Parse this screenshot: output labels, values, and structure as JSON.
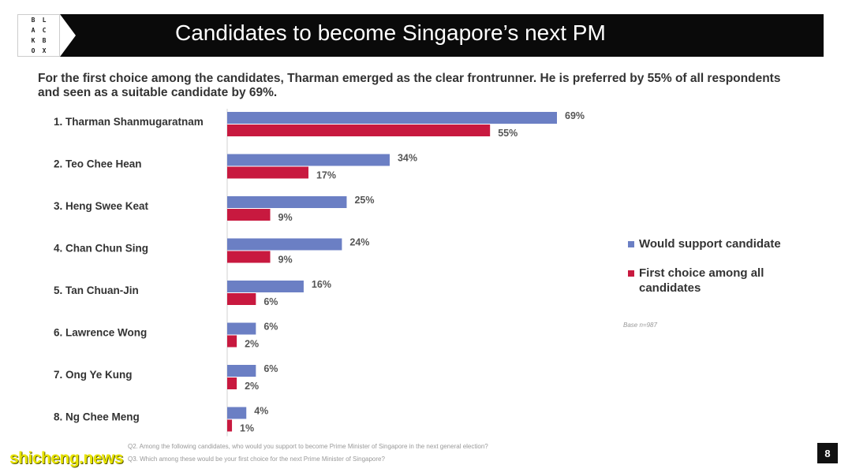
{
  "logo": {
    "letters": [
      "B",
      "L",
      "A",
      "C",
      "K",
      "B",
      "O",
      "X"
    ],
    "alt_text": "BLACKBOX"
  },
  "header": {
    "title": "Candidates to become Singapore’s next PM"
  },
  "intro_text": "For the first choice among the candidates, Tharman emerged as the clear frontrunner. He is preferred by 55% of all respondents and seen as a suitable candidate by 69%.",
  "chart_data": {
    "type": "bar",
    "orientation": "horizontal",
    "categories": [
      "1. Tharman Shanmugaratnam",
      "2. Teo Chee Hean",
      "3. Heng Swee Keat",
      "4. Chan Chun Sing",
      "5. Tan Chuan-Jin",
      "6. Lawrence Wong",
      "7. Ong Ye Kung",
      "8. Ng Chee Meng"
    ],
    "series": [
      {
        "name": "Would support candidate",
        "color": "#6b7fc4",
        "values": [
          69,
          34,
          25,
          24,
          16,
          6,
          6,
          4
        ]
      },
      {
        "name": "First choice among all candidates",
        "color": "#c8193f",
        "values": [
          55,
          17,
          9,
          9,
          6,
          2,
          2,
          1
        ]
      }
    ],
    "value_suffix": "%",
    "xlim": [
      0,
      100
    ],
    "grid": false,
    "legend_position": "right"
  },
  "base_note": "Base n=987",
  "footnote": {
    "line1": "Q2. Among the following candidates, who would you support to become Prime Minister of Singapore in the next general election?",
    "line2": "Q3. Which among these would be your first choice for the next Prime Minister of Singapore?"
  },
  "page_number": "8",
  "watermark": "shicheng.news"
}
